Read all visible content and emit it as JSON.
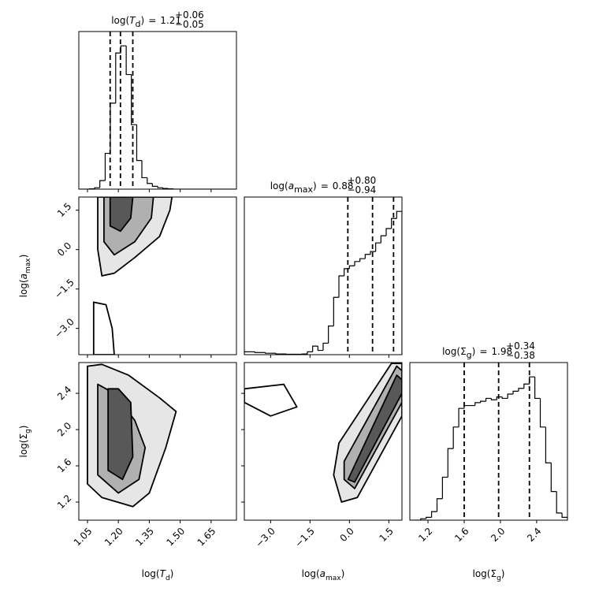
{
  "chart_data": {
    "type": "corner",
    "color": "#000000",
    "params": [
      {
        "pre": "log(",
        "var": "T",
        "var_italic": true,
        "sub": "d",
        "post": ")",
        "eq": "=",
        "value": 1.21,
        "plus": {
          "value": 0.06,
          "label": "+0.06"
        },
        "minus": {
          "value": 0.05,
          "label": "−0.05"
        },
        "lim": [
          1.008,
          1.773
        ],
        "ticks": [
          1.05,
          {
            "value": 1.2,
            "label": "1.20"
          },
          1.35,
          {
            "value": 1.5,
            "label": "1.50"
          },
          1.65
        ],
        "bins": [
          1.008,
          1.034,
          1.059,
          1.085,
          1.11,
          1.136,
          1.161,
          1.187,
          1.212,
          1.238,
          1.263,
          1.289,
          1.314,
          1.34,
          1.365,
          1.391,
          1.416,
          1.442,
          1.467,
          1.493,
          1.518,
          1.544,
          1.569,
          1.595,
          1.62,
          1.646,
          1.671,
          1.697,
          1.722,
          1.748,
          1.773
        ],
        "counts": [
          0,
          0,
          0.002,
          0.01,
          0.06,
          0.25,
          0.6,
          0.95,
          1.0,
          0.8,
          0.45,
          0.2,
          0.08,
          0.04,
          0.02,
          0.01,
          0.005,
          0.002,
          0,
          0,
          0,
          0,
          0,
          0,
          0,
          0,
          0,
          0,
          0,
          0
        ],
        "hist_ylim": [
          0,
          1.1
        ]
      },
      {
        "pre": "log(",
        "var": "a",
        "var_italic": true,
        "sub": "max",
        "post": ")",
        "eq": "=",
        "value": 0.88,
        "plus": {
          "value": 0.8,
          "label": "+0.80"
        },
        "minus": {
          "value": 0.94,
          "label": "−0.94"
        },
        "lim": [
          -4.0,
          2.0
        ],
        "ticks": [
          {
            "value": -3.0,
            "label": "−3.0"
          },
          {
            "value": -1.5,
            "label": "−1.5"
          },
          {
            "value": 0.0,
            "label": "0.0"
          },
          1.5
        ],
        "bins": [
          -4.0,
          -3.8,
          -3.6,
          -3.4,
          -3.2,
          -3.0,
          -2.8,
          -2.6,
          -2.4,
          -2.2,
          -2.0,
          -1.8,
          -1.6,
          -1.4,
          -1.2,
          -1.0,
          -0.8,
          -0.6,
          -0.4,
          -0.2,
          0.0,
          0.2,
          0.4,
          0.6,
          0.8,
          1.0,
          1.2,
          1.4,
          1.6,
          1.8,
          2.0
        ],
        "counts": [
          0.02,
          0.02,
          0.015,
          0.015,
          0.01,
          0.01,
          0.005,
          0.005,
          0.003,
          0.003,
          0.003,
          0.005,
          0.02,
          0.06,
          0.03,
          0.08,
          0.2,
          0.4,
          0.55,
          0.6,
          0.62,
          0.65,
          0.67,
          0.7,
          0.72,
          0.78,
          0.83,
          0.88,
          0.95,
          1.0
        ],
        "hist_ylim": [
          0,
          1.1
        ]
      },
      {
        "pre": "log(",
        "var": "Σ",
        "var_italic": false,
        "sub": "g",
        "post": ")",
        "eq": "=",
        "value": 1.98,
        "plus": {
          "value": 0.34,
          "label": "+0.34"
        },
        "minus": {
          "value": 0.38,
          "label": "−0.38"
        },
        "lim": [
          1.0,
          2.74
        ],
        "ticks": [
          1.2,
          1.6,
          {
            "value": 2.0,
            "label": "2.0"
          },
          2.4
        ],
        "bins": [
          1.0,
          1.06,
          1.12,
          1.18,
          1.24,
          1.3,
          1.36,
          1.42,
          1.48,
          1.54,
          1.6,
          1.66,
          1.72,
          1.78,
          1.84,
          1.9,
          1.96,
          2.02,
          2.08,
          2.14,
          2.2,
          2.26,
          2.32,
          2.38,
          2.44,
          2.5,
          2.56,
          2.62,
          2.68,
          2.74
        ],
        "counts": [
          0,
          0,
          0.01,
          0.02,
          0.06,
          0.15,
          0.3,
          0.5,
          0.65,
          0.78,
          0.8,
          0.8,
          0.82,
          0.83,
          0.85,
          0.84,
          0.86,
          0.85,
          0.88,
          0.9,
          0.92,
          0.95,
          1.0,
          0.85,
          0.65,
          0.4,
          0.2,
          0.05,
          0.02
        ],
        "hist_ylim": [
          0,
          1.1
        ]
      }
    ],
    "pairs": [
      {
        "contours": [
          {
            "x": [
              1.1,
              1.1,
              1.12,
              1.18,
              1.28,
              1.4,
              1.45,
              1.46
            ],
            "y": [
              2.0,
              0.0,
              -1.0,
              -0.9,
              -0.3,
              0.5,
              1.5,
              2.0
            ]
          },
          {
            "x": [
              1.13,
              1.13,
              1.18,
              1.28,
              1.36,
              1.37
            ],
            "y": [
              2.0,
              0.3,
              -0.2,
              0.3,
              1.2,
              2.0
            ]
          },
          {
            "x": [
              1.16,
              1.16,
              1.21,
              1.26,
              1.27
            ],
            "y": [
              2.0,
              0.9,
              0.7,
              1.2,
              2.0
            ]
          },
          {
            "x": [
              1.08,
              1.08,
              1.18,
              1.17,
              1.14
            ],
            "y": [
              -2.0,
              -4.0,
              -4.0,
              -3.0,
              -2.1
            ]
          }
        ]
      },
      {
        "contours": [
          {
            "x": [
              1.05,
              1.05,
              1.12,
              1.27,
              1.35,
              1.43,
              1.48,
              1.4,
              1.25,
              1.12
            ],
            "y": [
              2.7,
              1.4,
              1.25,
              1.15,
              1.3,
              1.8,
              2.2,
              2.35,
              2.6,
              2.72
            ]
          },
          {
            "x": [
              1.1,
              1.1,
              1.2,
              1.3,
              1.33,
              1.28,
              1.18
            ],
            "y": [
              2.5,
              1.5,
              1.3,
              1.45,
              1.8,
              2.1,
              2.4
            ]
          },
          {
            "x": [
              1.15,
              1.15,
              1.22,
              1.27,
              1.26,
              1.2
            ],
            "y": [
              2.45,
              1.55,
              1.45,
              1.7,
              2.3,
              2.45
            ]
          }
        ]
      },
      {
        "contours": [
          {
            "x": [
              -0.6,
              -0.3,
              0.3,
              2.0,
              2.0,
              1.6,
              -0.4
            ],
            "y": [
              1.5,
              1.2,
              1.25,
              2.15,
              2.73,
              2.73,
              1.85
            ]
          },
          {
            "x": [
              -0.2,
              0.2,
              2.0,
              2.0,
              1.8,
              -0.2
            ],
            "y": [
              1.45,
              1.35,
              2.3,
              2.65,
              2.7,
              1.65
            ]
          },
          {
            "x": [
              -0.05,
              0.2,
              2.0,
              2.0,
              1.8
            ],
            "y": [
              1.45,
              1.42,
              2.4,
              2.55,
              2.6
            ]
          },
          {
            "x": [
              -4.0,
              -2.5,
              -2.0,
              -3.0,
              -4.0
            ],
            "y": [
              2.45,
              2.5,
              2.25,
              2.15,
              2.3
            ]
          }
        ]
      }
    ]
  }
}
